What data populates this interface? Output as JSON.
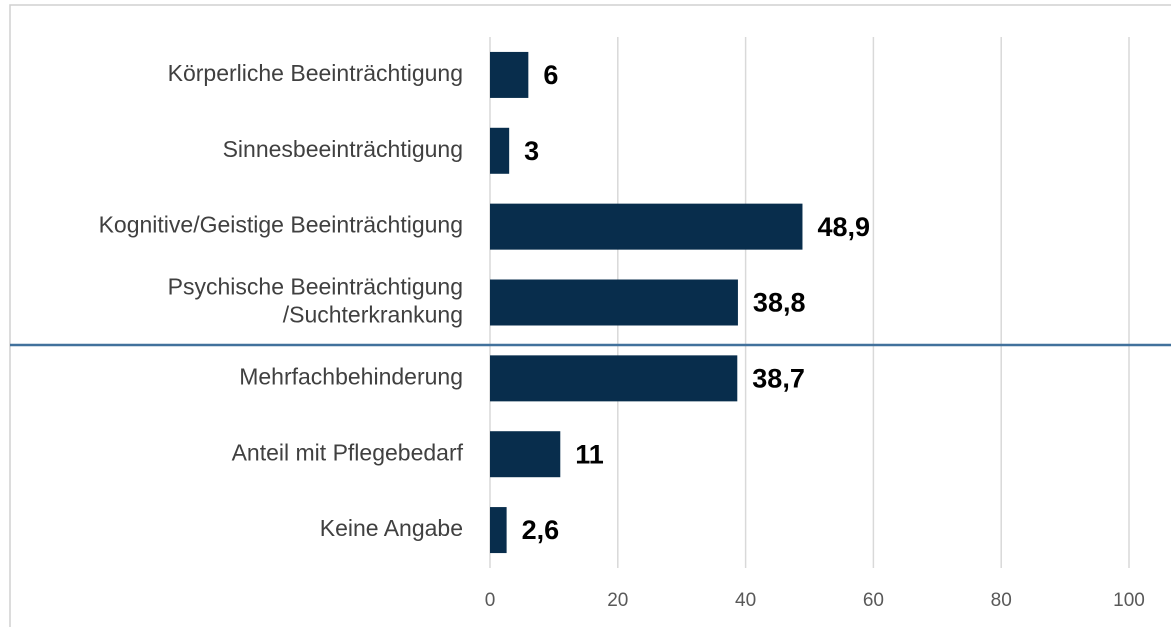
{
  "chart_data": {
    "type": "hbar",
    "categories": [
      "Körperliche Beeinträchtigung",
      "Sinnesbeeinträchtigung",
      "Kognitive/Geistige Beeinträchtigung",
      "Psychische Beeinträchtigung\n/Suchterkrankung",
      "Mehrfachbehinderung",
      "Anteil mit Pflegebedarf",
      "Keine Angabe"
    ],
    "values": [
      6,
      3,
      48.9,
      38.8,
      38.7,
      11,
      2.6
    ],
    "value_labels": [
      "6",
      "3",
      "48,9",
      "38,8",
      "38,7",
      "11",
      "2,6"
    ],
    "color": "#082d4c",
    "xlim": [
      0,
      100
    ],
    "xticks": [
      0,
      20,
      40,
      60,
      80,
      100
    ],
    "grid": true
  }
}
